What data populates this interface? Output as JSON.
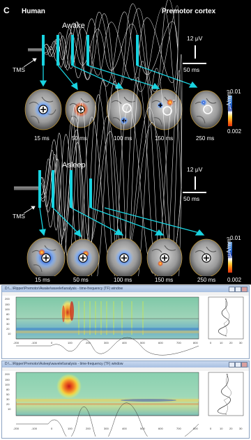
{
  "figure": {
    "panel_letter": "C",
    "subject": "Human",
    "region": "Premotor cortex",
    "awake": {
      "title": "Awake",
      "scale_amplitude": "12 μV",
      "scale_time": "50 ms",
      "tms_label": "TMS",
      "latencies": [
        "15 ms",
        "50 ms",
        "100 ms",
        "150 ms",
        "250 ms"
      ]
    },
    "asleep": {
      "title": "Asleep",
      "scale_amplitude": "12 μV",
      "scale_time": "50 ms",
      "tms_label": "TMS",
      "latencies": [
        "15 ms",
        "50 ms",
        "100 ms",
        "150 ms",
        "250 ms"
      ]
    },
    "colorbar": {
      "max": "0.01",
      "min": "0.002",
      "unit": "μA/mm²"
    },
    "colors": {
      "cyan_marker": "#19d3e0",
      "background": "#000000",
      "trace": "#ffffff"
    }
  },
  "windows": [
    {
      "title": "D:\\...\\Ripper\\Premotor\\Awake\\wavelet\\analysis - time-frequency (TF) window",
      "y_ticks": [
        "200",
        "150",
        "100",
        "80",
        "50",
        "30",
        "20",
        "10"
      ],
      "x_ticks": [
        "-200",
        "-100",
        "0",
        "100",
        "200",
        "300",
        "400",
        "500",
        "600",
        "700",
        "800"
      ],
      "side_ticks": [
        "0",
        "10",
        "20",
        "30"
      ]
    },
    {
      "title": "D:\\...\\Ripper\\Premotor\\Asleep\\wavelet\\analysis - time-frequency (TF) window",
      "y_ticks": [
        "200",
        "150",
        "100",
        "80",
        "50",
        "30",
        "20",
        "10"
      ],
      "x_ticks": [
        "-200",
        "-100",
        "0",
        "100",
        "200",
        "300",
        "400",
        "500",
        "600",
        "700",
        "800"
      ],
      "side_ticks": [
        "0",
        "10",
        "20",
        "30"
      ]
    }
  ]
}
